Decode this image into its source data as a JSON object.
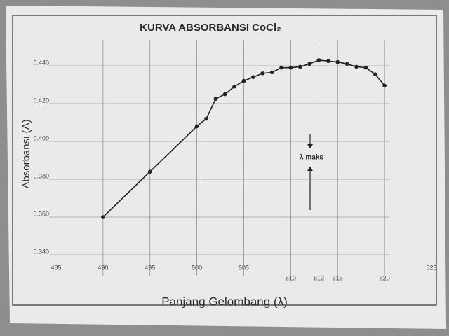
{
  "chart_data": {
    "type": "line",
    "title": "KURVA ABSORBANSI CoCl₂",
    "x_label": "Panjang Gelombang (λ)",
    "y_label": "Absorbansi (A)",
    "annotation": "λ maks",
    "x": [
      490,
      495,
      500,
      501,
      502,
      503,
      504,
      505,
      506,
      507,
      508,
      509,
      510,
      511,
      512,
      513,
      514,
      515,
      516,
      517,
      518,
      519,
      520
    ],
    "values": [
      0.36,
      0.384,
      0.408,
      0.412,
      0.4225,
      0.425,
      0.429,
      0.432,
      0.434,
      0.436,
      0.4365,
      0.439,
      0.439,
      0.4395,
      0.441,
      0.443,
      0.4425,
      0.442,
      0.441,
      0.4395,
      0.439,
      0.4355,
      0.4295
    ],
    "color": "#222222",
    "xlim": [
      485,
      525
    ],
    "ylim": [
      0.34,
      0.45
    ],
    "xticks": [
      485,
      490,
      495,
      500,
      505,
      510,
      513,
      515,
      520,
      525
    ],
    "yticks": [
      {
        "value": 0.34,
        "label": "0.340"
      },
      {
        "value": 0.36,
        "label": "0.360"
      },
      {
        "value": 0.38,
        "label": "0.380"
      },
      {
        "value": 0.4,
        "label": "0.400"
      },
      {
        "value": 0.42,
        "label": "0.420"
      },
      {
        "value": 0.44,
        "label": "0.440"
      }
    ],
    "grid": true
  }
}
